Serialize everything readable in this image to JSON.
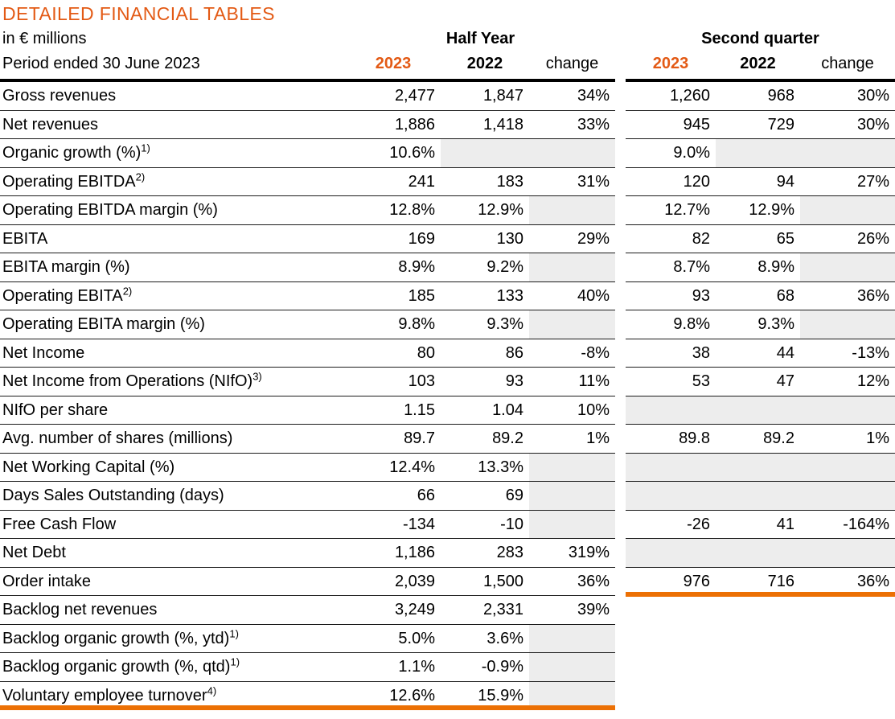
{
  "title": "DETAILED FINANCIAL TABLES",
  "header": {
    "unit_label": "in € millions",
    "period_label": "Period ended 30 June 2023",
    "group_half_year": "Half Year",
    "group_second_quarter": "Second quarter",
    "col_2023": "2023",
    "col_2022": "2022",
    "col_change": "change"
  },
  "colors": {
    "accent_orange": "#E35A15",
    "rule_orange": "#EC7004",
    "cell_gray": "#EDEDED"
  },
  "rows": [
    {
      "label": "Gross revenues",
      "sup": "",
      "half_year": [
        "2,477",
        "1,847",
        "34%"
      ],
      "second_quarter": [
        "1,260",
        "968",
        "30%"
      ]
    },
    {
      "label": "Net revenues",
      "sup": "",
      "half_year": [
        "1,886",
        "1,418",
        "33%"
      ],
      "second_quarter": [
        "945",
        "729",
        "30%"
      ]
    },
    {
      "label": "Organic growth (%)",
      "sup": "1)",
      "half_year": [
        "10.6%",
        "",
        ""
      ],
      "second_quarter": [
        "9.0%",
        "",
        ""
      ]
    },
    {
      "label": "Operating EBITDA",
      "sup": "2)",
      "half_year": [
        "241",
        "183",
        "31%"
      ],
      "second_quarter": [
        "120",
        "94",
        "27%"
      ]
    },
    {
      "label": "Operating EBITDA margin (%)",
      "sup": "",
      "half_year": [
        "12.8%",
        "12.9%",
        ""
      ],
      "second_quarter": [
        "12.7%",
        "12.9%",
        ""
      ]
    },
    {
      "label": "EBITA",
      "sup": "",
      "half_year": [
        "169",
        "130",
        "29%"
      ],
      "second_quarter": [
        "82",
        "65",
        "26%"
      ]
    },
    {
      "label": "EBITA margin (%)",
      "sup": "",
      "half_year": [
        "8.9%",
        "9.2%",
        ""
      ],
      "second_quarter": [
        "8.7%",
        "8.9%",
        ""
      ]
    },
    {
      "label": "Operating EBITA",
      "sup": "2)",
      "half_year": [
        "185",
        "133",
        "40%"
      ],
      "second_quarter": [
        "93",
        "68",
        "36%"
      ]
    },
    {
      "label": "Operating EBITA margin (%)",
      "sup": "",
      "half_year": [
        "9.8%",
        "9.3%",
        ""
      ],
      "second_quarter": [
        "9.8%",
        "9.3%",
        ""
      ]
    },
    {
      "label": "Net Income",
      "sup": "",
      "half_year": [
        "80",
        "86",
        "-8%"
      ],
      "second_quarter": [
        "38",
        "44",
        "-13%"
      ]
    },
    {
      "label": "Net Income from Operations (NIfO)",
      "sup": "3)",
      "half_year": [
        "103",
        "93",
        "11%"
      ],
      "second_quarter": [
        "53",
        "47",
        "12%"
      ]
    },
    {
      "label": "NIfO per share",
      "sup": "",
      "half_year": [
        "1.15",
        "1.04",
        "10%"
      ],
      "second_quarter": [
        "",
        "",
        ""
      ]
    },
    {
      "label": "Avg. number of shares (millions)",
      "sup": "",
      "half_year": [
        "89.7",
        "89.2",
        "1%"
      ],
      "second_quarter": [
        "89.8",
        "89.2",
        "1%"
      ]
    },
    {
      "label": "Net Working Capital (%)",
      "sup": "",
      "half_year": [
        "12.4%",
        "13.3%",
        ""
      ],
      "second_quarter": [
        "",
        "",
        ""
      ]
    },
    {
      "label": "Days Sales Outstanding (days)",
      "sup": "",
      "half_year": [
        "66",
        "69",
        ""
      ],
      "second_quarter": [
        "",
        "",
        ""
      ]
    },
    {
      "label": "Free Cash Flow",
      "sup": "",
      "half_year": [
        "-134",
        "-10",
        ""
      ],
      "second_quarter": [
        "-26",
        "41",
        "-164%"
      ]
    },
    {
      "label": "Net Debt",
      "sup": "",
      "half_year": [
        "1,186",
        "283",
        "319%"
      ],
      "second_quarter": [
        "",
        "",
        ""
      ]
    },
    {
      "label": "Order intake",
      "sup": "",
      "half_year": [
        "2,039",
        "1,500",
        "36%"
      ],
      "second_quarter": [
        "976",
        "716",
        "36%"
      ]
    },
    {
      "label": "Backlog net revenues",
      "sup": "",
      "half_year": [
        "3,249",
        "2,331",
        "39%"
      ],
      "second_quarter": null
    },
    {
      "label": "Backlog organic growth (%, ytd)",
      "sup": "1)",
      "half_year": [
        "5.0%",
        "3.6%",
        ""
      ],
      "second_quarter": null
    },
    {
      "label": "Backlog organic growth (%, qtd)",
      "sup": "1)",
      "half_year": [
        "1.1%",
        "-0.9%",
        ""
      ],
      "second_quarter": null
    },
    {
      "label": "Voluntary employee turnover",
      "sup": "4)",
      "half_year": [
        "12.6%",
        "15.9%",
        ""
      ],
      "second_quarter": null
    }
  ]
}
